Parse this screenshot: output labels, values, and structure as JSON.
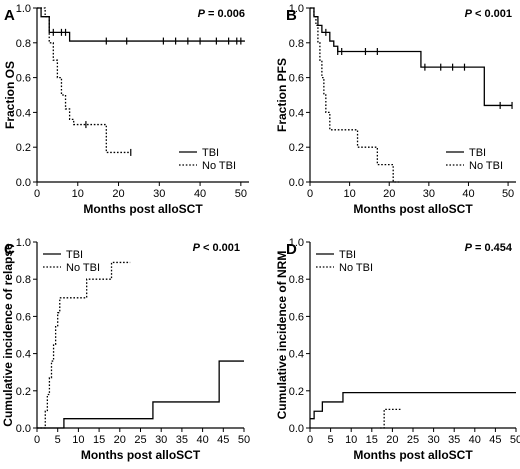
{
  "chart_data": [
    {
      "type": "line",
      "panel": "A",
      "pvalue": "= 0.006",
      "xlabel": "Months post alloSCT",
      "ylabel": "Fraction OS",
      "xlim": [
        0,
        52
      ],
      "ylim": [
        0,
        1.0
      ],
      "xticks": [
        "0",
        "10",
        "20",
        "30",
        "40",
        "50"
      ],
      "yticks": [
        "0.0",
        "0.2",
        "0.4",
        "0.6",
        "0.8",
        "1.0"
      ],
      "legend_position": "bottom-right",
      "series": [
        {
          "name": "TBI",
          "style": "solid",
          "x": [
            0,
            1,
            3,
            8,
            51
          ],
          "y": [
            1.0,
            0.95,
            0.86,
            0.81,
            0.81
          ],
          "censor_x": [
            4,
            6,
            7,
            17,
            22,
            31,
            34,
            37,
            40,
            44,
            47,
            49,
            50
          ],
          "censor_y": [
            0.86,
            0.86,
            0.86,
            0.81,
            0.81,
            0.81,
            0.81,
            0.81,
            0.81,
            0.81,
            0.81,
            0.81,
            0.81
          ]
        },
        {
          "name": "No TBI",
          "style": "dotted",
          "x": [
            0,
            2,
            3,
            4,
            5,
            6,
            7,
            8,
            9,
            12,
            17,
            23
          ],
          "y": [
            1.0,
            0.95,
            0.8,
            0.7,
            0.6,
            0.5,
            0.42,
            0.36,
            0.33,
            0.33,
            0.17,
            0.17
          ],
          "censor_x": [
            12,
            23
          ],
          "censor_y": [
            0.33,
            0.17
          ]
        }
      ]
    },
    {
      "type": "line",
      "panel": "B",
      "pvalue": "< 0.001",
      "xlabel": "Months post alloSCT",
      "ylabel": "Fraction PFS",
      "xlim": [
        0,
        52
      ],
      "ylim": [
        0,
        1.0
      ],
      "xticks": [
        "0",
        "10",
        "20",
        "30",
        "40",
        "50"
      ],
      "yticks": [
        "0.0",
        "0.2",
        "0.4",
        "0.6",
        "0.8",
        "1.0"
      ],
      "legend_position": "bottom-right",
      "series": [
        {
          "name": "TBI",
          "style": "solid",
          "x": [
            0,
            1,
            2,
            3,
            5,
            6,
            7,
            28,
            44,
            51
          ],
          "y": [
            1.0,
            0.95,
            0.9,
            0.86,
            0.81,
            0.78,
            0.75,
            0.66,
            0.44,
            0.44
          ],
          "censor_x": [
            4,
            7,
            8,
            14,
            17,
            29,
            33,
            36,
            39,
            48,
            51
          ],
          "censor_y": [
            0.86,
            0.75,
            0.75,
            0.75,
            0.75,
            0.66,
            0.66,
            0.66,
            0.66,
            0.44,
            0.44
          ]
        },
        {
          "name": "No TBI",
          "style": "dotted",
          "x": [
            0,
            1,
            1.5,
            2,
            2.5,
            3,
            3.5,
            4,
            5,
            12,
            17,
            21,
            22.5
          ],
          "y": [
            1.0,
            0.95,
            0.9,
            0.8,
            0.7,
            0.6,
            0.5,
            0.4,
            0.3,
            0.2,
            0.1,
            0.0,
            0.0
          ],
          "censor_x": [],
          "censor_y": []
        }
      ]
    },
    {
      "type": "line",
      "panel": "C",
      "pvalue": "< 0.001",
      "xlabel": "Months post alloSCT",
      "ylabel": "Cumulative incidence of relapse",
      "xlim": [
        0,
        50
      ],
      "ylim": [
        0,
        1.0
      ],
      "xticks": [
        "0",
        "5",
        "10",
        "15",
        "20",
        "25",
        "30",
        "35",
        "40",
        "45",
        "50"
      ],
      "yticks": [
        "0.0",
        "0.2",
        "0.4",
        "0.6",
        "0.8",
        "1.0"
      ],
      "legend_position": "top-left",
      "series": [
        {
          "name": "TBI",
          "style": "solid",
          "x": [
            0,
            6.5,
            28,
            44,
            50
          ],
          "y": [
            0.0,
            0.05,
            0.14,
            0.36,
            0.36
          ],
          "censor_x": [],
          "censor_y": []
        },
        {
          "name": "No TBI",
          "style": "dotted",
          "x": [
            0,
            2,
            2.5,
            3,
            3.5,
            4,
            4.5,
            5,
            5.5,
            7,
            12,
            18,
            22.5
          ],
          "y": [
            0.0,
            0.09,
            0.18,
            0.27,
            0.36,
            0.45,
            0.55,
            0.62,
            0.7,
            0.7,
            0.8,
            0.89,
            0.89
          ],
          "censor_x": [],
          "censor_y": []
        }
      ]
    },
    {
      "type": "line",
      "panel": "D",
      "pvalue": "= 0.454",
      "xlabel": "Months post alloSCT",
      "ylabel": "Cumulative incidence of NRM",
      "xlim": [
        0,
        50
      ],
      "ylim": [
        0,
        1.0
      ],
      "xticks": [
        "0",
        "5",
        "10",
        "15",
        "20",
        "25",
        "30",
        "35",
        "40",
        "45",
        "50"
      ],
      "yticks": [
        "0.0",
        "0.2",
        "0.4",
        "0.6",
        "0.8",
        "1.0"
      ],
      "legend_position": "top-left",
      "series": [
        {
          "name": "TBI",
          "style": "solid",
          "x": [
            0,
            1,
            3,
            8,
            50
          ],
          "y": [
            0.05,
            0.09,
            0.14,
            0.19,
            0.19
          ],
          "censor_x": [],
          "censor_y": []
        },
        {
          "name": "No TBI",
          "style": "dotted",
          "x": [
            17,
            18,
            22
          ],
          "y": [
            0.0,
            0.1,
            0.1
          ],
          "censor_x": [],
          "censor_y": []
        }
      ]
    }
  ]
}
